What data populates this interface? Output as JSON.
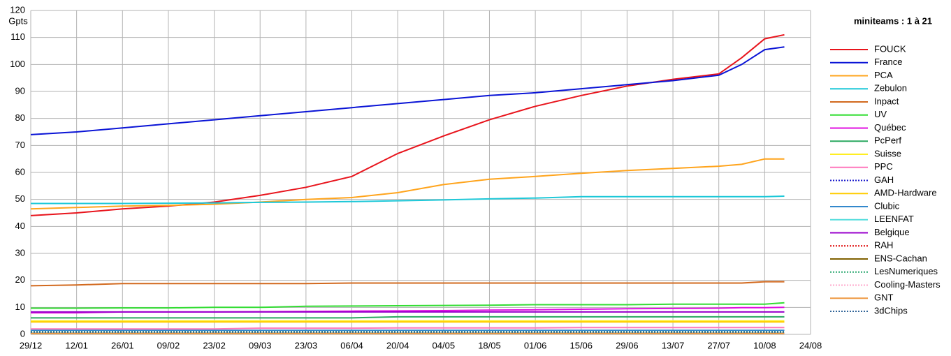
{
  "chart_data": {
    "type": "line",
    "title": "miniteams : 1 à 21",
    "y_label": "Gpts",
    "grid": true,
    "x": [
      0,
      14,
      28,
      42,
      56,
      70,
      84,
      98,
      112,
      126,
      140,
      154,
      168,
      182,
      196,
      210,
      217,
      224,
      230
    ],
    "xlim": [
      0,
      238
    ],
    "xticks": [
      {
        "value": 0,
        "label": "29/12"
      },
      {
        "value": 14,
        "label": "12/01"
      },
      {
        "value": 28,
        "label": "26/01"
      },
      {
        "value": 42,
        "label": "09/02"
      },
      {
        "value": 56,
        "label": "23/02"
      },
      {
        "value": 70,
        "label": "09/03"
      },
      {
        "value": 84,
        "label": "23/03"
      },
      {
        "value": 98,
        "label": "06/04"
      },
      {
        "value": 112,
        "label": "20/04"
      },
      {
        "value": 126,
        "label": "04/05"
      },
      {
        "value": 140,
        "label": "18/05"
      },
      {
        "value": 154,
        "label": "01/06"
      },
      {
        "value": 168,
        "label": "15/06"
      },
      {
        "value": 182,
        "label": "29/06"
      },
      {
        "value": 196,
        "label": "13/07"
      },
      {
        "value": 210,
        "label": "27/07"
      },
      {
        "value": 224,
        "label": "10/08"
      },
      {
        "value": 238,
        "label": "24/08"
      }
    ],
    "ylim": [
      0,
      120
    ],
    "yticks": [
      0,
      10,
      20,
      30,
      40,
      50,
      60,
      70,
      80,
      90,
      100,
      110,
      120
    ],
    "series": [
      {
        "name": "FOUCK",
        "color": "#e8141c",
        "style": "solid",
        "values": [
          44,
          45,
          46.5,
          47.5,
          49,
          51.5,
          54.5,
          58.5,
          67,
          73.5,
          79.5,
          84.5,
          88.5,
          92,
          94.5,
          96.5,
          102.5,
          109.5,
          111
        ]
      },
      {
        "name": "France",
        "color": "#0a14d6",
        "style": "solid",
        "values": [
          74,
          75,
          76.5,
          78,
          79.5,
          81,
          82.5,
          84,
          85.5,
          87,
          88.5,
          89.5,
          91,
          92.5,
          94,
          96,
          100,
          105.5,
          106.5
        ]
      },
      {
        "name": "PCA",
        "color": "#ffa41c",
        "style": "solid",
        "values": [
          46.5,
          47,
          47.5,
          47.8,
          48.2,
          49,
          50,
          50.7,
          52.5,
          55.5,
          57.5,
          58.5,
          59.7,
          60.7,
          61.5,
          62.3,
          63,
          65,
          65
        ]
      },
      {
        "name": "Zebulon",
        "color": "#1ec8d8",
        "style": "solid",
        "values": [
          48.5,
          48.5,
          48.5,
          48.6,
          48.7,
          48.9,
          49,
          49.2,
          49.5,
          49.8,
          50.2,
          50.5,
          51,
          51,
          51,
          51,
          51,
          51,
          51.2
        ]
      },
      {
        "name": "Inpact",
        "color": "#d2691e",
        "style": "solid",
        "values": [
          18,
          18.3,
          18.8,
          18.8,
          18.8,
          18.8,
          18.8,
          19,
          19,
          19,
          19,
          19,
          19,
          19,
          19,
          19,
          19,
          19.5,
          19.5
        ]
      },
      {
        "name": "UV",
        "color": "#33dd33",
        "style": "solid",
        "values": [
          9.7,
          9.7,
          9.8,
          9.8,
          10,
          10,
          10.4,
          10.5,
          10.6,
          10.7,
          10.8,
          11,
          11,
          11,
          11.2,
          11.2,
          11.2,
          11.2,
          11.7
        ]
      },
      {
        "name": "Québec",
        "color": "#e010e0",
        "style": "solid",
        "values": [
          8,
          8,
          8.3,
          8.3,
          8.3,
          8.4,
          8.5,
          8.6,
          8.7,
          8.8,
          9,
          9.1,
          9.3,
          9.5,
          9.6,
          9.7,
          9.9,
          9.9,
          10
        ]
      },
      {
        "name": "PcPerf",
        "color": "#2aa860",
        "style": "solid",
        "values": [
          6.1,
          6.1,
          6.1,
          6.1,
          6.1,
          6.1,
          6.1,
          6.1,
          6.5,
          6.5,
          6.5,
          6.5,
          6.5,
          6.5,
          6.5,
          6.5,
          6.5,
          6.5,
          6.5
        ]
      },
      {
        "name": "Suisse",
        "color": "#ffee22",
        "style": "solid",
        "values": [
          5,
          5,
          5,
          5,
          5,
          5,
          5,
          5,
          5,
          5,
          5,
          5,
          5,
          5,
          5,
          5,
          5,
          5,
          5
        ]
      },
      {
        "name": "PPC",
        "color": "#ff77bb",
        "style": "solid",
        "values": [
          2,
          2,
          2,
          2,
          2,
          2.3,
          2.3,
          2.3,
          2.4,
          2.4,
          2.4,
          2.4,
          2.5,
          2.5,
          2.5,
          2.5,
          2.5,
          2.5,
          2.5
        ]
      },
      {
        "name": "GAH",
        "color": "#1a1acc",
        "style": "dotted",
        "values": [
          1.2,
          1.2,
          1.2,
          1.2,
          1.2,
          1.2,
          1.2,
          1.2,
          1.2,
          1.2,
          1.2,
          1.2,
          1.2,
          1.2,
          1.2,
          1.2,
          1.2,
          1.2,
          1.2
        ]
      },
      {
        "name": "AMD-Hardware",
        "color": "#ffcc00",
        "style": "solid",
        "values": [
          4.6,
          4.6,
          4.6,
          4.6,
          4.6,
          4.6,
          4.6,
          4.6,
          4.6,
          4.6,
          4.6,
          4.6,
          4.6,
          4.6,
          4.6,
          4.6,
          4.6,
          4.6,
          4.6
        ]
      },
      {
        "name": "Clubic",
        "color": "#3388cc",
        "style": "solid",
        "values": [
          1.5,
          1.5,
          1.5,
          1.5,
          1.5,
          1.5,
          1.5,
          1.5,
          1.5,
          1.5,
          1.5,
          1.5,
          1.5,
          1.5,
          1.5,
          1.5,
          1.5,
          1.5,
          1.5
        ]
      },
      {
        "name": "LEENFAT",
        "color": "#55dddd",
        "style": "solid",
        "values": [
          0.5,
          0.5,
          0.5,
          0.5,
          0.5,
          0.5,
          0.5,
          0.5,
          0.5,
          0.5,
          0.5,
          0.5,
          0.5,
          0.5,
          0.5,
          0.5,
          0.5,
          0.5,
          0.5
        ]
      },
      {
        "name": "Belgique",
        "color": "#9900cc",
        "style": "solid",
        "values": [
          8.3,
          8.3,
          8.3,
          8.3,
          8.3,
          8.3,
          8.3,
          8.3,
          8.3,
          8.3,
          8.3,
          8.3,
          8.3,
          8.3,
          8.3,
          8.3,
          8.3,
          8.3,
          8.3
        ]
      },
      {
        "name": "RAH",
        "color": "#dd0000",
        "style": "dotted",
        "values": [
          0.9,
          0.9,
          0.9,
          0.9,
          0.9,
          0.9,
          0.9,
          0.9,
          0.9,
          0.9,
          0.9,
          0.9,
          0.9,
          0.9,
          0.9,
          0.9,
          0.9,
          0.9,
          0.9
        ]
      },
      {
        "name": "ENS-Cachan",
        "color": "#806000",
        "style": "solid",
        "values": [
          0.3,
          0.3,
          0.3,
          0.3,
          0.3,
          0.3,
          0.3,
          0.3,
          0.3,
          0.3,
          0.3,
          0.3,
          0.3,
          0.3,
          0.3,
          0.3,
          0.3,
          0.3,
          0.3
        ]
      },
      {
        "name": "LesNumeriques",
        "color": "#2aa870",
        "style": "dotted",
        "values": [
          1,
          1,
          1,
          1,
          1,
          1,
          1,
          1,
          1,
          1,
          1,
          1,
          1,
          1,
          1,
          1,
          1,
          1,
          1
        ]
      },
      {
        "name": "Cooling-Masters",
        "color": "#ffaacc",
        "style": "dotted",
        "values": [
          0.6,
          0.6,
          0.6,
          0.6,
          0.6,
          0.6,
          0.6,
          0.6,
          0.6,
          0.6,
          0.6,
          0.6,
          0.6,
          0.6,
          0.6,
          0.6,
          0.6,
          0.6,
          0.6
        ]
      },
      {
        "name": "GNT",
        "color": "#ee9944",
        "style": "solid",
        "values": [
          0.4,
          0.4,
          0.4,
          0.4,
          0.4,
          0.4,
          0.4,
          0.4,
          0.4,
          0.4,
          0.4,
          0.4,
          0.4,
          0.4,
          0.4,
          0.4,
          0.4,
          0.4,
          0.4
        ]
      },
      {
        "name": "3dChips",
        "color": "#336699",
        "style": "dotted",
        "values": [
          0.8,
          0.8,
          0.8,
          0.8,
          0.8,
          0.8,
          0.8,
          0.8,
          0.8,
          0.8,
          0.8,
          0.8,
          0.8,
          0.8,
          0.8,
          0.8,
          0.8,
          0.8,
          0.8
        ]
      }
    ]
  }
}
